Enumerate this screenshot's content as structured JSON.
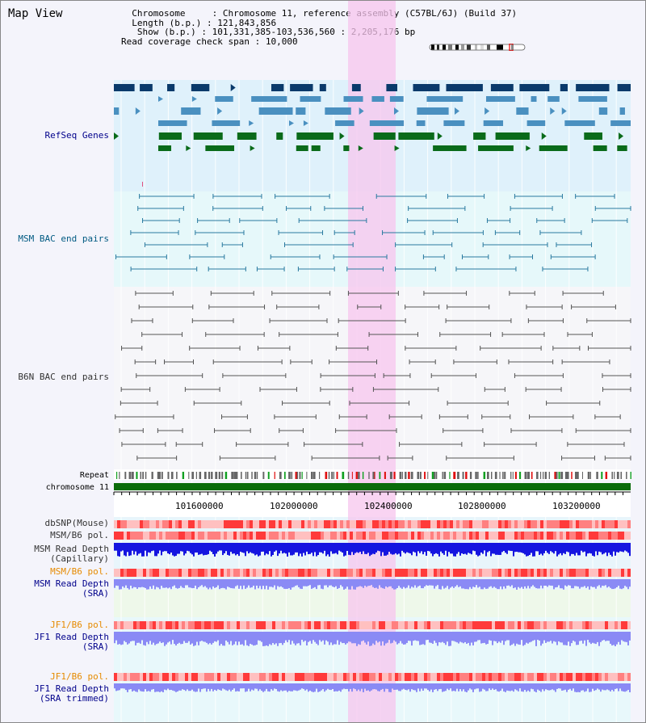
{
  "view_title": "Map View",
  "info": {
    "chromosome_label": "Chromosome",
    "chromosome_value": "Chromosome 11, reference assembly (C57BL/6J) (Build 37)",
    "length_label": "Length (b.p.)",
    "length_value": "121,843,856",
    "show_label": "Show (b.p.)",
    "show_value": "101,331,385-103,536,560 : 2,205,176 bp",
    "coverage_label": "Read coverage check span",
    "coverage_value": "10,000"
  },
  "tracks": {
    "refseq": "RefSeq Genes",
    "msm_bac": "MSM BAC end pairs",
    "b6n_bac": "B6N BAC end pairs",
    "repeat": "Repeat",
    "chromosome": "chromosome 11",
    "dbsnp": "dbSNP(Mouse)",
    "msm_b6_pol_1": "MSM/B6 pol.",
    "msm_depth_cap_1": "MSM Read Depth",
    "msm_depth_cap_2": "(Capillary)",
    "msm_b6_pol_2": "MSM/B6 pol.",
    "msm_depth_sra_1": "MSM Read Depth",
    "msm_depth_sra_2": "(SRA)",
    "jf1_b6_pol_1": "JF1/B6 pol.",
    "jf1_depth_sra_1": "JF1 Read Depth",
    "jf1_depth_sra_2": "(SRA)",
    "jf1_b6_pol_2": "JF1/B6 pol.",
    "jf1_depth_trim_1": "JF1 Read Depth",
    "jf1_depth_trim_2": "(SRA trimmed)"
  },
  "axis_ticks": [
    "101600000",
    "102000000",
    "102400000",
    "102800000",
    "103200000"
  ],
  "colors": {
    "refseq_dark": "#0a3a6b",
    "refseq_mid": "#4a90c0",
    "refseq_green": "#0a6b1a",
    "msm_bac": "#2a7aa0",
    "b6n_bac": "#555555",
    "highlight": "#f7c6ee",
    "depth_blue": "#1515e0",
    "depth_light": "#8a8af5",
    "pol_red": "#ff5a5a"
  }
}
